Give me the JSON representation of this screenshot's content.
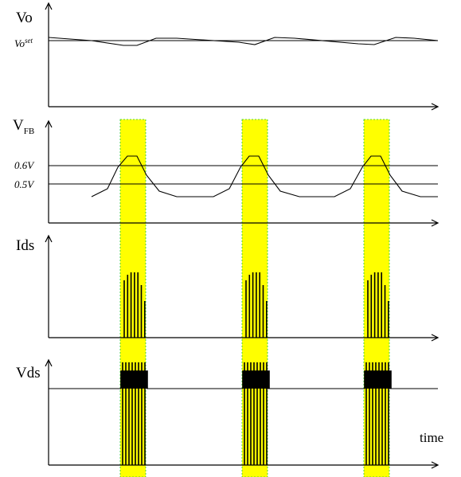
{
  "labels": {
    "vo": "Vo",
    "vo_set_base": "Vo",
    "vo_set_sup": "set",
    "vfb_base": "V",
    "vfb_sub": "FB",
    "ref_high": "0.6V",
    "ref_low": "0.5V",
    "ids": "Ids",
    "vds": "Vds",
    "time": "time"
  },
  "colors": {
    "band_fill": "#ffff00",
    "band_border": "#22cc22",
    "line": "#000000"
  },
  "bursts": 3
}
